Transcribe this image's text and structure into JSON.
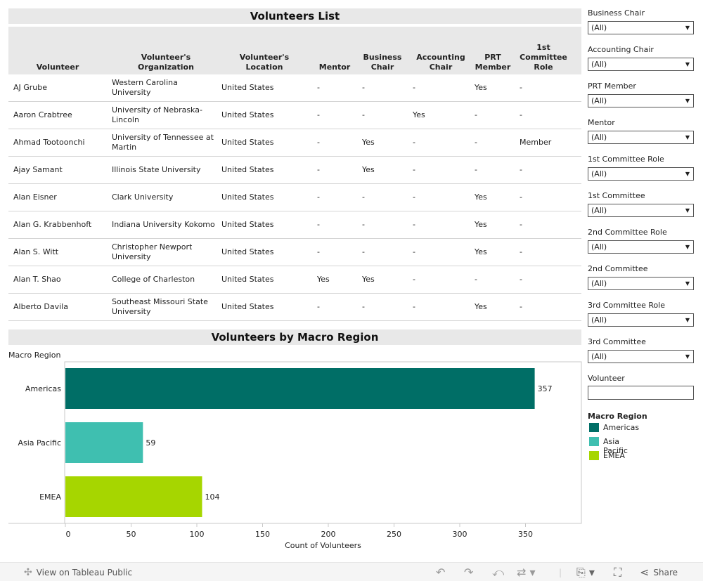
{
  "table": {
    "title": "Volunteers List",
    "columns": [
      "Volunteer",
      "Volunteer's\nOrganization",
      "Volunteer's\nLocation",
      "Mentor",
      "Business\nChair",
      "Accounting\nChair",
      "PRT\nMember",
      "1st\nCommittee\nRole"
    ],
    "rows": [
      [
        "AJ Grube",
        "Western Carolina University",
        "United States",
        "-",
        "-",
        "-",
        "Yes",
        "-"
      ],
      [
        "Aaron Crabtree",
        "University of Nebraska-Lincoln",
        "United States",
        "-",
        "-",
        "Yes",
        "-",
        "-"
      ],
      [
        "Ahmad Tootoonchi",
        "University of Tennessee at Martin",
        "United States",
        "-",
        "Yes",
        "-",
        "-",
        "Member"
      ],
      [
        "Ajay Samant",
        "Illinois State University",
        "United States",
        "-",
        "Yes",
        "-",
        "-",
        "-"
      ],
      [
        "Alan Eisner",
        "Clark University",
        "United States",
        "-",
        "-",
        "-",
        "Yes",
        "-"
      ],
      [
        "Alan G. Krabbenhoft",
        "Indiana University Kokomo",
        "United States",
        "-",
        "-",
        "-",
        "Yes",
        "-"
      ],
      [
        "Alan S. Witt",
        "Christopher Newport University",
        "United States",
        "-",
        "-",
        "-",
        "Yes",
        "-"
      ],
      [
        "Alan T. Shao",
        "College of Charleston",
        "United States",
        "Yes",
        "Yes",
        "-",
        "-",
        "-"
      ],
      [
        "Alberto Davila",
        "Southeast Missouri State University",
        "United States",
        "-",
        "-",
        "-",
        "Yes",
        "-"
      ]
    ]
  },
  "chart_title": "Volunteers by Macro Region",
  "chart_data": {
    "type": "bar",
    "orientation": "horizontal",
    "categories": [
      "Americas",
      "Asia Pacific",
      "EMEA"
    ],
    "values": [
      357,
      59,
      104
    ],
    "colors": [
      "#006e66",
      "#3fbfb0",
      "#a6d600"
    ],
    "xlabel": "Count of Volunteers",
    "ylabel": "Macro Region",
    "xlim": [
      0,
      375
    ],
    "xticks": [
      0,
      50,
      100,
      150,
      200,
      250,
      300,
      350
    ]
  },
  "filters": [
    {
      "label": "Business Chair",
      "value": "(All)"
    },
    {
      "label": "Accounting Chair",
      "value": "(All)"
    },
    {
      "label": "PRT Member",
      "value": "(All)"
    },
    {
      "label": "Mentor",
      "value": "(All)"
    },
    {
      "label": "1st Committee Role",
      "value": "(All)"
    },
    {
      "label": "1st Committee",
      "value": "(All)"
    },
    {
      "label": "2nd Committee Role",
      "value": "(All)"
    },
    {
      "label": "2nd Committee",
      "value": "(All)"
    },
    {
      "label": "3rd Committee Role",
      "value": "(All)"
    },
    {
      "label": "3rd Committee",
      "value": "(All)"
    }
  ],
  "volunteer_filter": {
    "label": "Volunteer",
    "value": ""
  },
  "legend": {
    "title": "Macro Region",
    "items": [
      {
        "label": "Americas",
        "color": "#006e66"
      },
      {
        "label": "Asia Pacific",
        "color": "#3fbfb0"
      },
      {
        "label": "EMEA",
        "color": "#a6d600"
      }
    ]
  },
  "toolbar": {
    "view_label": "View on Tableau Public",
    "share_label": "Share",
    "icons": [
      "undo-icon",
      "redo-icon",
      "revert-icon",
      "refresh-icon",
      "download-icon",
      "fullscreen-icon",
      "share-icon"
    ]
  }
}
